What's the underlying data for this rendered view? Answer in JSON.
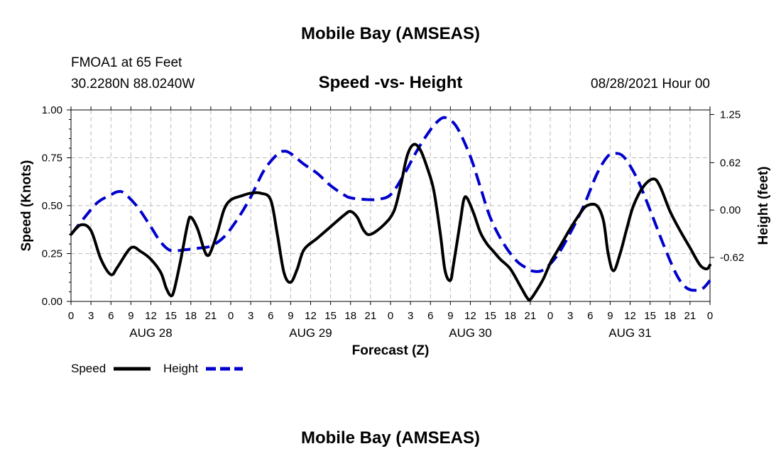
{
  "header": {
    "title_top": "Mobile Bay (AMSEAS)",
    "station": "FMOA1 at 65 Feet",
    "location": "30.2280N  88.0240W",
    "chart_title": "Speed -vs- Height",
    "timestamp": "08/28/2021 Hour 00"
  },
  "footer": {
    "title_bottom": "Mobile Bay (AMSEAS)"
  },
  "colors": {
    "speed": "#000000",
    "height": "#0000cc",
    "grid": "#bbbbbb"
  },
  "chart_data": {
    "type": "line",
    "title": "Speed -vs- Height",
    "xlabel": "Forecast (Z)",
    "ylabel_left": "Speed (Knots)",
    "ylabel_right": "Height (feet)",
    "xlim": [
      0,
      96
    ],
    "ylim_left": [
      0,
      1.0
    ],
    "ylim_right": [
      -1.195,
      1.31
    ],
    "x_tick_labels": [
      "0",
      "3",
      "6",
      "9",
      "12",
      "15",
      "18",
      "21",
      "0",
      "3",
      "6",
      "9",
      "12",
      "15",
      "18",
      "21",
      "0",
      "3",
      "6",
      "9",
      "12",
      "15",
      "18",
      "21",
      "0",
      "3",
      "6",
      "9",
      "12",
      "15",
      "18",
      "21",
      "0"
    ],
    "y_left_ticks": [
      {
        "value": 0.0,
        "label": "0.00"
      },
      {
        "value": 0.25,
        "label": "0.25"
      },
      {
        "value": 0.5,
        "label": "0.50"
      },
      {
        "value": 0.75,
        "label": "0.75"
      },
      {
        "value": 1.0,
        "label": "1.00"
      }
    ],
    "y_right_ticks": [
      {
        "value": -0.62,
        "label": "-0.62"
      },
      {
        "value": 0.0,
        "label": "0.00"
      },
      {
        "value": 0.62,
        "label": "0.62"
      },
      {
        "value": 1.25,
        "label": "1.25"
      }
    ],
    "day_labels": [
      {
        "hour": 12,
        "label": "AUG 28"
      },
      {
        "hour": 36,
        "label": "AUG 29"
      },
      {
        "hour": 60,
        "label": "AUG 30"
      },
      {
        "hour": 84,
        "label": "AUG 31"
      }
    ],
    "legend": [
      {
        "name": "Speed",
        "style": "solid"
      },
      {
        "name": "Height",
        "style": "dashed"
      }
    ],
    "series": [
      {
        "name": "Speed",
        "axis": "left",
        "units": "knots",
        "points": [
          [
            0,
            0.35
          ],
          [
            1.5,
            0.4
          ],
          [
            3,
            0.37
          ],
          [
            4.5,
            0.22
          ],
          [
            6,
            0.14
          ],
          [
            7,
            0.18
          ],
          [
            9,
            0.28
          ],
          [
            10.5,
            0.26
          ],
          [
            12,
            0.22
          ],
          [
            13.5,
            0.15
          ],
          [
            14.3,
            0.07
          ],
          [
            15,
            0.03
          ],
          [
            15.5,
            0.06
          ],
          [
            16.5,
            0.22
          ],
          [
            17.5,
            0.4
          ],
          [
            18,
            0.44
          ],
          [
            19,
            0.38
          ],
          [
            20,
            0.27
          ],
          [
            20.5,
            0.24
          ],
          [
            21,
            0.26
          ],
          [
            22,
            0.36
          ],
          [
            23,
            0.48
          ],
          [
            24,
            0.53
          ],
          [
            25.5,
            0.55
          ],
          [
            27,
            0.565
          ],
          [
            28.5,
            0.565
          ],
          [
            30,
            0.53
          ],
          [
            31,
            0.35
          ],
          [
            32,
            0.15
          ],
          [
            33,
            0.1
          ],
          [
            34,
            0.17
          ],
          [
            35,
            0.27
          ],
          [
            37,
            0.33
          ],
          [
            39,
            0.39
          ],
          [
            41,
            0.45
          ],
          [
            42,
            0.47
          ],
          [
            43,
            0.44
          ],
          [
            44,
            0.37
          ],
          [
            45,
            0.35
          ],
          [
            47,
            0.4
          ],
          [
            48.5,
            0.47
          ],
          [
            49.5,
            0.6
          ],
          [
            50.5,
            0.76
          ],
          [
            51.5,
            0.82
          ],
          [
            52.5,
            0.79
          ],
          [
            53.5,
            0.7
          ],
          [
            54.5,
            0.58
          ],
          [
            55.5,
            0.35
          ],
          [
            56.2,
            0.16
          ],
          [
            57,
            0.11
          ],
          [
            57.5,
            0.2
          ],
          [
            58.5,
            0.42
          ],
          [
            59,
            0.53
          ],
          [
            59.5,
            0.54
          ],
          [
            60.5,
            0.46
          ],
          [
            61.5,
            0.36
          ],
          [
            62.5,
            0.3
          ],
          [
            63.5,
            0.26
          ],
          [
            64.5,
            0.22
          ],
          [
            66,
            0.17
          ],
          [
            67.5,
            0.08
          ],
          [
            68.5,
            0.02
          ],
          [
            69,
            0.01
          ],
          [
            70,
            0.06
          ],
          [
            71,
            0.12
          ],
          [
            72,
            0.2
          ],
          [
            73,
            0.26
          ],
          [
            74,
            0.32
          ],
          [
            75,
            0.38
          ],
          [
            76.5,
            0.46
          ],
          [
            77.5,
            0.5
          ],
          [
            79,
            0.5
          ],
          [
            80,
            0.42
          ],
          [
            80.7,
            0.25
          ],
          [
            81.5,
            0.16
          ],
          [
            82.5,
            0.25
          ],
          [
            83.5,
            0.38
          ],
          [
            84.5,
            0.5
          ],
          [
            86,
            0.6
          ],
          [
            87.5,
            0.64
          ],
          [
            88.5,
            0.6
          ],
          [
            90,
            0.47
          ],
          [
            91.5,
            0.37
          ],
          [
            93,
            0.28
          ],
          [
            94.5,
            0.19
          ],
          [
            95.5,
            0.17
          ],
          [
            96,
            0.19
          ]
        ]
      },
      {
        "name": "Height",
        "axis": "right",
        "units": "feet",
        "points": [
          [
            0,
            -0.32
          ],
          [
            2,
            -0.1
          ],
          [
            4,
            0.1
          ],
          [
            6,
            0.2
          ],
          [
            7,
            0.24
          ],
          [
            8,
            0.22
          ],
          [
            10,
            0.04
          ],
          [
            12,
            -0.22
          ],
          [
            13.5,
            -0.42
          ],
          [
            15,
            -0.53
          ],
          [
            17,
            -0.52
          ],
          [
            19,
            -0.5
          ],
          [
            21,
            -0.47
          ],
          [
            23,
            -0.35
          ],
          [
            25,
            -0.12
          ],
          [
            27,
            0.17
          ],
          [
            29,
            0.52
          ],
          [
            31,
            0.73
          ],
          [
            32,
            0.77
          ],
          [
            33,
            0.74
          ],
          [
            35,
            0.6
          ],
          [
            37,
            0.48
          ],
          [
            39,
            0.32
          ],
          [
            41,
            0.2
          ],
          [
            42,
            0.16
          ],
          [
            44,
            0.14
          ],
          [
            46,
            0.14
          ],
          [
            48,
            0.2
          ],
          [
            50,
            0.46
          ],
          [
            52,
            0.78
          ],
          [
            54,
            1.05
          ],
          [
            55.5,
            1.19
          ],
          [
            56.5,
            1.2
          ],
          [
            58,
            1.08
          ],
          [
            60,
            0.7
          ],
          [
            61.5,
            0.3
          ],
          [
            63,
            -0.1
          ],
          [
            65,
            -0.44
          ],
          [
            67,
            -0.67
          ],
          [
            68.5,
            -0.76
          ],
          [
            69.5,
            -0.8
          ],
          [
            71,
            -0.78
          ],
          [
            73,
            -0.6
          ],
          [
            75,
            -0.3
          ],
          [
            77,
            0.05
          ],
          [
            79,
            0.47
          ],
          [
            80.5,
            0.69
          ],
          [
            81.5,
            0.74
          ],
          [
            83,
            0.7
          ],
          [
            85,
            0.42
          ],
          [
            87,
            0.0
          ],
          [
            89,
            -0.45
          ],
          [
            91,
            -0.85
          ],
          [
            92.5,
            -1.02
          ],
          [
            94,
            -1.05
          ],
          [
            95,
            -1.02
          ],
          [
            96,
            -0.92
          ]
        ]
      }
    ]
  }
}
